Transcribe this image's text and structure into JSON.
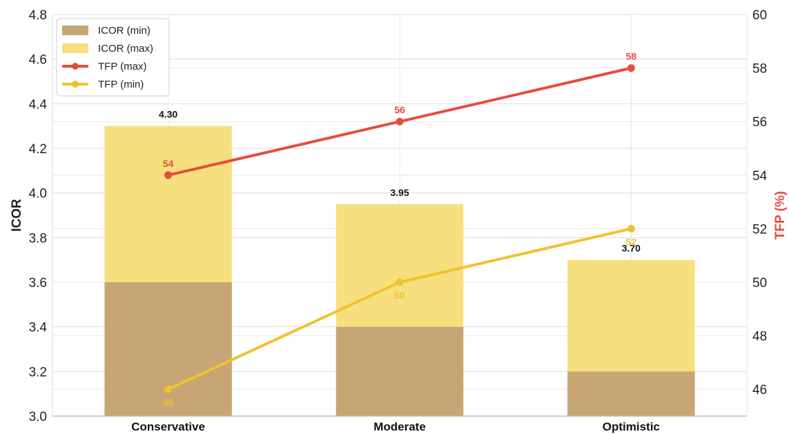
{
  "chart_data": {
    "type": "bar",
    "categories": [
      "Conservative",
      "Moderate",
      "Optimistic"
    ],
    "y_left": {
      "label": "ICOR",
      "lim": [
        3.0,
        4.8
      ],
      "ticks": [
        "3.0",
        "3.2",
        "3.4",
        "3.6",
        "3.8",
        "4.0",
        "4.2",
        "4.4",
        "4.6",
        "4.8"
      ],
      "color": "#222222"
    },
    "y_right": {
      "label": "TFP (%)",
      "lim": [
        45,
        60
      ],
      "ticks": [
        "46",
        "48",
        "50",
        "52",
        "54",
        "56",
        "58",
        "60"
      ],
      "color": "#e74c3c"
    },
    "bar_series": [
      {
        "name": "ICOR (min)",
        "values": [
          3.6,
          3.4,
          3.2
        ],
        "color": "#c8a574"
      },
      {
        "name": "ICOR (max)",
        "values": [
          4.3,
          3.95,
          3.7
        ],
        "color": "#f7df7e",
        "labels": [
          "4.30",
          "3.95",
          "3.70"
        ]
      }
    ],
    "line_series": [
      {
        "name": "TFP (max)",
        "values": [
          54,
          56,
          58
        ],
        "color": "#e74c3c",
        "labels": [
          "54",
          "56",
          "58"
        ]
      },
      {
        "name": "TFP (min)",
        "values": [
          46,
          50,
          52
        ],
        "color": "#f0c230",
        "labels": [
          "46",
          "50",
          "52"
        ]
      }
    ],
    "grid": true,
    "legend_position": "top-left"
  }
}
